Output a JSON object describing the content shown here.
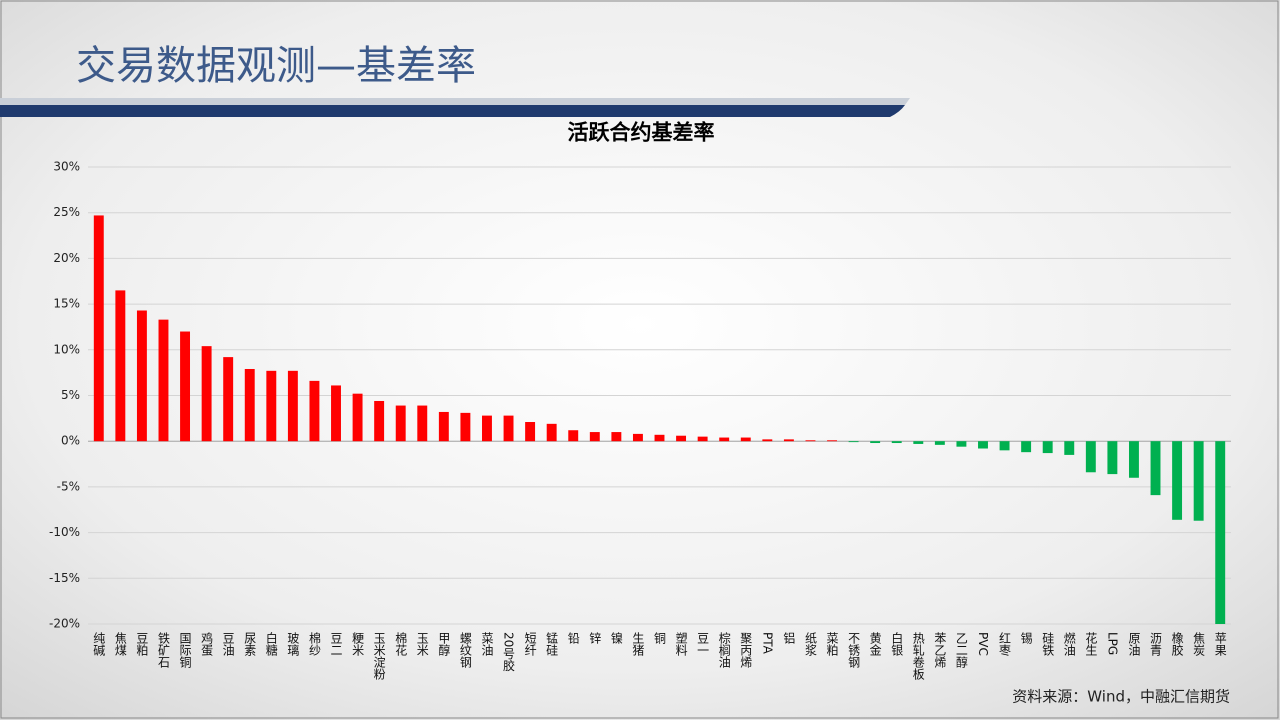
{
  "header": {
    "title": "交易数据观测—基差率"
  },
  "chart_data": {
    "type": "bar",
    "title": "活跃合约基差率",
    "source": "资料来源：Wind，中融汇信期货",
    "categories": [
      "纯碱",
      "焦煤",
      "豆粕",
      "铁矿石",
      "国际铜",
      "鸡蛋",
      "豆油",
      "尿素",
      "白糖",
      "玻璃",
      "棉纱",
      "豆二",
      "粳米",
      "玉米淀粉",
      "棉花",
      "玉米",
      "甲醇",
      "螺纹钢",
      "菜油",
      "20号胶",
      "短纤",
      "锰硅",
      "铅",
      "锌",
      "镍",
      "生猪",
      "铜",
      "塑料",
      "豆一",
      "棕榈油",
      "聚丙烯",
      "PTA",
      "铝",
      "纸浆",
      "菜粕",
      "不锈钢",
      "黄金",
      "白银",
      "热轧卷板",
      "苯乙烯",
      "乙二醇",
      "PVC",
      "红枣",
      "锡",
      "硅铁",
      "燃油",
      "花生",
      "LPG",
      "原油",
      "沥青",
      "橡胶",
      "焦炭",
      "苹果"
    ],
    "values": [
      24.7,
      16.5,
      14.3,
      13.3,
      12.0,
      10.4,
      9.2,
      7.9,
      7.7,
      7.7,
      6.6,
      6.1,
      5.2,
      4.4,
      3.9,
      3.9,
      3.2,
      3.1,
      2.8,
      2.8,
      2.1,
      1.9,
      1.2,
      1.0,
      1.0,
      0.8,
      0.7,
      0.6,
      0.5,
      0.4,
      0.4,
      0.2,
      0.2,
      0.1,
      0.1,
      -0.1,
      -0.2,
      -0.2,
      -0.3,
      -0.4,
      -0.6,
      -0.8,
      -1.0,
      -1.2,
      -1.3,
      -1.5,
      -3.4,
      -3.6,
      -4.0,
      -5.9,
      -8.6,
      -8.7,
      -20.0
    ],
    "positive_color": "#ff0000",
    "negative_color": "#00b050",
    "ylim": [
      -20,
      30
    ],
    "yticks": [
      {
        "value": -20,
        "label": "-20%"
      },
      {
        "value": -15,
        "label": "-15%"
      },
      {
        "value": -10,
        "label": "-10%"
      },
      {
        "value": -5,
        "label": "-5%"
      },
      {
        "value": 0,
        "label": "0%"
      },
      {
        "value": 5,
        "label": "5%"
      },
      {
        "value": 10,
        "label": "10%"
      },
      {
        "value": 15,
        "label": "15%"
      },
      {
        "value": 20,
        "label": "20%"
      },
      {
        "value": 25,
        "label": "25%"
      },
      {
        "value": 30,
        "label": "30%"
      }
    ],
    "grid": true
  }
}
